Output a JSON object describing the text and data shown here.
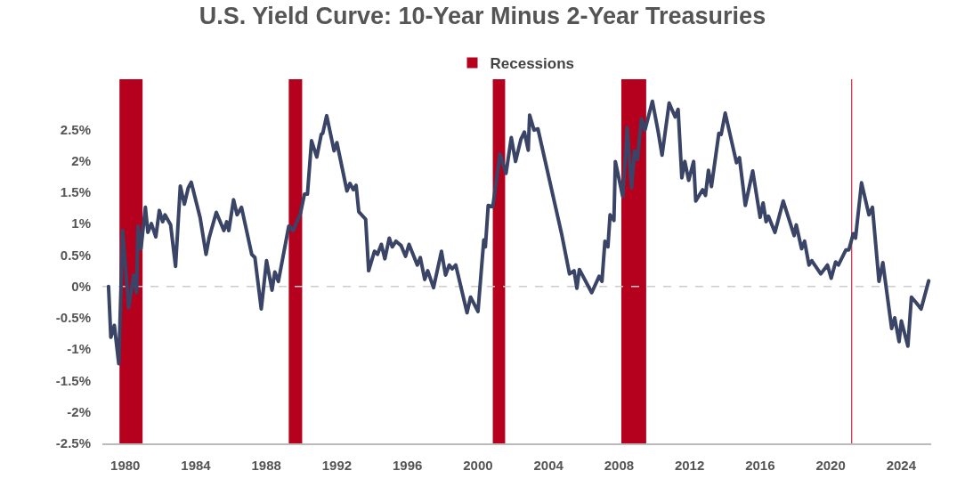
{
  "chart_data": {
    "type": "line",
    "title": "U.S. Yield Curve: 10-Year Minus 2-Year Treasuries",
    "x": [
      1979.05,
      1979.18,
      1979.38,
      1979.63,
      1979.85,
      1980.19,
      1980.47,
      1980.64,
      1980.72,
      1980.89,
      1981.14,
      1981.28,
      1981.48,
      1981.73,
      1981.93,
      1982.12,
      1982.25,
      1982.57,
      1982.85,
      1983.12,
      1983.35,
      1983.57,
      1983.74,
      1984.24,
      1984.58,
      1984.75,
      1985.16,
      1985.59,
      1985.75,
      1985.87,
      1986.14,
      1986.34,
      1986.59,
      1987.17,
      1987.35,
      1987.71,
      1988.01,
      1988.32,
      1988.48,
      1988.68,
      1989.27,
      1989.52,
      1989.94,
      1990.16,
      1990.33,
      1990.56,
      1990.86,
      1991.11,
      1991.2,
      1991.42,
      1991.84,
      1992.0,
      1992.57,
      1992.74,
      1992.93,
      1993.09,
      1993.24,
      1993.63,
      1993.8,
      1994.13,
      1994.3,
      1994.52,
      1994.72,
      1994.97,
      1995.14,
      1995.35,
      1995.64,
      1995.89,
      1996.09,
      1996.56,
      1996.73,
      1996.98,
      1997.15,
      1997.48,
      1997.93,
      1998.16,
      1998.37,
      1998.54,
      1998.74,
      1999.38,
      1999.58,
      2000.0,
      2000.33,
      2000.42,
      2000.58,
      2000.84,
      2001.25,
      2001.59,
      2001.89,
      2002.13,
      2002.43,
      2002.63,
      2002.85,
      2002.93,
      2003.18,
      2003.4,
      2004.74,
      2005.19,
      2005.45,
      2005.61,
      2005.75,
      2006.45,
      2006.87,
      2007.03,
      2007.2,
      2007.37,
      2007.49,
      2007.71,
      2007.79,
      2008.21,
      2008.46,
      2008.71,
      2008.88,
      2009.04,
      2009.27,
      2009.47,
      2009.89,
      2010.22,
      2010.44,
      2010.84,
      2011.18,
      2011.35,
      2011.56,
      2011.73,
      2011.95,
      2012.23,
      2012.35,
      2012.74,
      2012.9,
      2013.07,
      2013.24,
      2013.66,
      2013.79,
      2014.02,
      2014.66,
      2014.83,
      2015.16,
      2015.58,
      2016.0,
      2016.17,
      2016.34,
      2016.47,
      2016.84,
      2017.31,
      2017.93,
      2018.05,
      2018.35,
      2018.52,
      2018.77,
      2018.93,
      2019.44,
      2019.82,
      2020.03,
      2020.28,
      2020.44,
      2020.86,
      2021.03,
      2021.28,
      2021.41,
      2021.75,
      2022.17,
      2022.37,
      2022.74,
      2022.96,
      2023.46,
      2023.63,
      2023.88,
      2024.01,
      2024.38,
      2024.58,
      2024.88,
      2025.13,
      2025.56
    ],
    "series": [
      {
        "color": "#3a4466",
        "values": [
          0.0,
          -0.81,
          -0.62,
          -1.23,
          0.89,
          -0.34,
          0.18,
          -0.1,
          0.96,
          0.6,
          1.26,
          0.86,
          1.0,
          0.79,
          1.21,
          1.03,
          1.14,
          0.98,
          0.32,
          1.6,
          1.31,
          1.57,
          1.66,
          1.1,
          0.51,
          0.77,
          1.18,
          0.89,
          1.03,
          0.89,
          1.38,
          1.14,
          1.26,
          0.51,
          0.46,
          -0.36,
          0.41,
          -0.06,
          0.23,
          0.08,
          0.96,
          0.89,
          1.17,
          1.47,
          1.47,
          2.32,
          2.06,
          2.42,
          2.44,
          2.72,
          2.16,
          2.29,
          1.52,
          1.64,
          1.54,
          1.61,
          1.19,
          1.07,
          0.25,
          0.56,
          0.51,
          0.67,
          0.44,
          0.77,
          0.63,
          0.72,
          0.65,
          0.48,
          0.67,
          0.34,
          0.46,
          0.11,
          0.25,
          -0.02,
          0.56,
          0.18,
          0.34,
          0.28,
          0.34,
          -0.42,
          -0.17,
          -0.4,
          0.74,
          0.63,
          1.29,
          1.27,
          2.11,
          1.8,
          2.37,
          1.99,
          2.34,
          2.46,
          2.17,
          2.73,
          2.49,
          2.51,
          0.84,
          0.2,
          0.25,
          -0.03,
          0.27,
          -0.1,
          0.16,
          0.08,
          0.72,
          0.63,
          1.14,
          1.05,
          1.99,
          1.43,
          2.53,
          1.57,
          2.16,
          2.02,
          2.67,
          2.49,
          2.95,
          2.46,
          2.09,
          2.92,
          2.7,
          2.82,
          1.73,
          1.99,
          1.69,
          1.99,
          1.36,
          1.54,
          1.45,
          1.85,
          1.59,
          2.44,
          2.42,
          2.76,
          1.97,
          2.05,
          1.29,
          1.84,
          1.1,
          1.33,
          1.03,
          1.12,
          0.86,
          1.36,
          0.81,
          0.98,
          0.6,
          0.72,
          0.34,
          0.41,
          0.2,
          0.34,
          0.13,
          0.39,
          0.34,
          0.58,
          0.58,
          0.84,
          0.77,
          1.65,
          1.14,
          1.26,
          0.08,
          0.38,
          -0.67,
          -0.5,
          -0.88,
          -0.55,
          -0.95,
          -0.17,
          -0.27,
          -0.36,
          0.09
        ]
      }
    ],
    "xlim": [
      1978.7,
      2025.7
    ],
    "xticks": [
      1980,
      1984,
      1988,
      1992,
      1996,
      2000,
      2004,
      2008,
      2012,
      2016,
      2020,
      2024
    ],
    "ylim": [
      -2.5,
      3.3
    ],
    "yticks": [
      {
        "value": -2.5,
        "label": "-2.5%"
      },
      {
        "value": -2,
        "label": "-2%"
      },
      {
        "value": -1.5,
        "label": "-1.5%"
      },
      {
        "value": -1,
        "label": "-1%"
      },
      {
        "value": -0.5,
        "label": "-0.5%"
      },
      {
        "value": 0,
        "label": "0%"
      },
      {
        "value": 0.5,
        "label": "0.5%"
      },
      {
        "value": 1,
        "label": "1%"
      },
      {
        "value": 1.5,
        "label": "1.5%"
      },
      {
        "value": 2,
        "label": "2%"
      },
      {
        "value": 2.5,
        "label": "2.5%"
      }
    ],
    "ref_lines": [
      {
        "axis": "y",
        "value": 0,
        "color": "#cccccc",
        "line_style": "dashed"
      }
    ],
    "bands": [
      {
        "axis": "x",
        "from": 1979.67,
        "to": 1980.98,
        "label": "Recessions",
        "color": "#b5001e"
      },
      {
        "axis": "x",
        "from": 1989.27,
        "to": 1990.03,
        "color": "#b5001e"
      },
      {
        "axis": "x",
        "from": 2000.84,
        "to": 2001.54,
        "color": "#b5001e"
      },
      {
        "axis": "x",
        "from": 2008.13,
        "to": 2009.54,
        "color": "#b5001e"
      },
      {
        "axis": "x",
        "from": 2021.17,
        "to": 2021.22,
        "color": "#b5001e"
      }
    ],
    "grid": false,
    "legend": "top",
    "marker": "none",
    "line_style": "solid"
  }
}
